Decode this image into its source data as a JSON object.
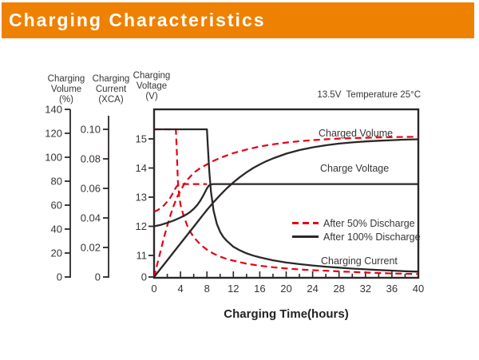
{
  "header": {
    "title": "Charging Characteristics"
  },
  "colors": {
    "accent_orange": "#ee8102",
    "series_red": "#e60012",
    "series_black": "#2b2728",
    "text": "#383434"
  },
  "chart_data": {
    "type": "line",
    "title": "Charging Characteristics",
    "xlabel": "Charging Time(hours)",
    "annotation": "13.5V  Temperature 25°C",
    "grid": false,
    "legend_position": "inside-right",
    "x_axis": {
      "min": 0,
      "max": 40,
      "major_tick_step": 4,
      "minor_tick_step": 2,
      "tick_labels": [
        "0",
        "4",
        "8",
        "12",
        "16",
        "20",
        "24",
        "28",
        "32",
        "36",
        "40"
      ]
    },
    "axes": {
      "volume": {
        "title": "Charging\nVolume\n(%)",
        "min": 0,
        "max": 140,
        "ticks": [
          {
            "v": 0,
            "label": "0"
          },
          {
            "v": 20,
            "label": "20"
          },
          {
            "v": 40,
            "label": "40"
          },
          {
            "v": 60,
            "label": "60"
          },
          {
            "v": 80,
            "label": "80"
          },
          {
            "v": 100,
            "label": "100"
          },
          {
            "v": 120,
            "label": "120"
          },
          {
            "v": 140,
            "label": "140"
          }
        ]
      },
      "current": {
        "title": "Charging\nCurrent\n(XCA)",
        "min": 0,
        "max": 0.1,
        "ticks": [
          {
            "v": 0,
            "label": "0"
          },
          {
            "v": 0.02,
            "label": "0.02"
          },
          {
            "v": 0.04,
            "label": "0.04"
          },
          {
            "v": 0.06,
            "label": "0.06"
          },
          {
            "v": 0.08,
            "label": "0.08"
          },
          {
            "v": 0.1,
            "label": "0.10"
          }
        ]
      },
      "voltage": {
        "title": "Charging\nVoltage\n(V)",
        "min": 0,
        "max": 15.5,
        "broken_axis": true,
        "ticks": [
          {
            "v": 0,
            "label": "0"
          },
          {
            "v": 11,
            "label": "11"
          },
          {
            "v": 12,
            "label": "12"
          },
          {
            "v": 13,
            "label": "13"
          },
          {
            "v": 14,
            "label": "14"
          },
          {
            "v": 15,
            "label": "15"
          }
        ]
      }
    },
    "curve_labels": {
      "charged_volume": "Charged Volume",
      "charge_voltage": "Charge Voltage",
      "charging_current": "Charging Current"
    },
    "legend": [
      {
        "label": "After 50% Discharge",
        "line_style": "dashed",
        "color": "#e60012"
      },
      {
        "label": "After 100% Discharge",
        "line_style": "solid",
        "color": "#2b2728"
      }
    ],
    "series": [
      {
        "id": "charged-volume-50",
        "name": "Charged Volume (After 50% Discharge)",
        "axis": "volume",
        "color": "#e60012",
        "dash": true,
        "points": [
          [
            0,
            0
          ],
          [
            0.5,
            11
          ],
          [
            1,
            22
          ],
          [
            1.5,
            33
          ],
          [
            2,
            43
          ],
          [
            2.5,
            52
          ],
          [
            3,
            60
          ],
          [
            3.5,
            67
          ],
          [
            4,
            72
          ],
          [
            4.5,
            77
          ],
          [
            5,
            81
          ],
          [
            6,
            87
          ],
          [
            7,
            91
          ],
          [
            8,
            94
          ],
          [
            9,
            97
          ],
          [
            10,
            99.5
          ],
          [
            12,
            103.5
          ],
          [
            14,
            106.5
          ],
          [
            16,
            109
          ],
          [
            18,
            110.8
          ],
          [
            20,
            112.3
          ],
          [
            22,
            113.4
          ],
          [
            24,
            114.3
          ],
          [
            26,
            115
          ],
          [
            28,
            115.6
          ],
          [
            30,
            116
          ],
          [
            32,
            116.3
          ],
          [
            34,
            116.6
          ],
          [
            36,
            116.8
          ],
          [
            38,
            117
          ],
          [
            40,
            117.1
          ]
        ]
      },
      {
        "id": "charge-voltage-50",
        "name": "Charge Voltage (After 50% Discharge)",
        "axis": "voltage",
        "color": "#e60012",
        "dash": true,
        "points": [
          [
            0,
            12.5
          ],
          [
            0.5,
            12.55
          ],
          [
            1,
            12.62
          ],
          [
            1.5,
            12.72
          ],
          [
            2,
            12.85
          ],
          [
            2.5,
            13.0
          ],
          [
            3,
            13.2
          ],
          [
            3.3,
            13.33
          ],
          [
            3.6,
            13.42
          ],
          [
            4,
            13.45
          ],
          [
            5,
            13.45
          ],
          [
            6,
            13.45
          ],
          [
            7,
            13.45
          ],
          [
            8,
            13.45
          ]
        ]
      },
      {
        "id": "charging-current-50",
        "name": "Charging Current (After 50% Discharge)",
        "axis": "current",
        "color": "#e60012",
        "dash": true,
        "points": [
          [
            0,
            0.1
          ],
          [
            3.3,
            0.1
          ],
          [
            3.45,
            0.085
          ],
          [
            3.6,
            0.065
          ],
          [
            3.8,
            0.055
          ],
          [
            4,
            0.049
          ],
          [
            4.5,
            0.041
          ],
          [
            5,
            0.035
          ],
          [
            5.5,
            0.0305
          ],
          [
            6,
            0.027
          ],
          [
            6.5,
            0.0245
          ],
          [
            7,
            0.022
          ],
          [
            8,
            0.0185
          ],
          [
            9,
            0.0158
          ],
          [
            10,
            0.0138
          ],
          [
            11,
            0.0122
          ],
          [
            12,
            0.011
          ],
          [
            14,
            0.009
          ],
          [
            16,
            0.0076
          ],
          [
            18,
            0.0066
          ],
          [
            20,
            0.0058
          ],
          [
            22,
            0.0051
          ],
          [
            24,
            0.0046
          ],
          [
            26,
            0.0042
          ],
          [
            28,
            0.0038
          ],
          [
            30,
            0.0034
          ],
          [
            32,
            0.003
          ],
          [
            34,
            0.0027
          ],
          [
            36,
            0.0024
          ],
          [
            38,
            0.0022
          ],
          [
            40,
            0.002
          ]
        ]
      },
      {
        "id": "charged-volume-100",
        "name": "Charged Volume (After 100% Discharge)",
        "axis": "volume",
        "color": "#2b2728",
        "dash": false,
        "points": [
          [
            0,
            0
          ],
          [
            1,
            7
          ],
          [
            2,
            14
          ],
          [
            3,
            21
          ],
          [
            4,
            28
          ],
          [
            5,
            35
          ],
          [
            6,
            42
          ],
          [
            7,
            49
          ],
          [
            8,
            56
          ],
          [
            9,
            62.5
          ],
          [
            10,
            68.5
          ],
          [
            11,
            74
          ],
          [
            12,
            79
          ],
          [
            13,
            83.5
          ],
          [
            14,
            87.5
          ],
          [
            15,
            91
          ],
          [
            16,
            94
          ],
          [
            17,
            96.7
          ],
          [
            18,
            99
          ],
          [
            19,
            101
          ],
          [
            20,
            103
          ],
          [
            22,
            106
          ],
          [
            24,
            108.3
          ],
          [
            26,
            110
          ],
          [
            28,
            111.4
          ],
          [
            30,
            112.4
          ],
          [
            32,
            113.2
          ],
          [
            34,
            113.8
          ],
          [
            36,
            114.3
          ],
          [
            38,
            114.7
          ],
          [
            40,
            115
          ]
        ]
      },
      {
        "id": "charge-voltage-100",
        "name": "Charge Voltage (After 100% Discharge)",
        "axis": "voltage",
        "color": "#2b2728",
        "dash": false,
        "points": [
          [
            0,
            12.0
          ],
          [
            1,
            12.05
          ],
          [
            2,
            12.12
          ],
          [
            3,
            12.2
          ],
          [
            4,
            12.3
          ],
          [
            5,
            12.42
          ],
          [
            5.5,
            12.5
          ],
          [
            6,
            12.6
          ],
          [
            6.5,
            12.72
          ],
          [
            7,
            12.88
          ],
          [
            7.5,
            13.08
          ],
          [
            8,
            13.3
          ],
          [
            8.3,
            13.4
          ],
          [
            8.7,
            13.44
          ],
          [
            9,
            13.45
          ],
          [
            12,
            13.45
          ],
          [
            16,
            13.45
          ],
          [
            20,
            13.45
          ],
          [
            24,
            13.45
          ],
          [
            28,
            13.45
          ],
          [
            32,
            13.45
          ],
          [
            36,
            13.45
          ],
          [
            40,
            13.45
          ]
        ]
      },
      {
        "id": "charging-current-100",
        "name": "Charging Current (After 100% Discharge)",
        "axis": "current",
        "color": "#2b2728",
        "dash": false,
        "points": [
          [
            0,
            0.1
          ],
          [
            8,
            0.1
          ],
          [
            8.15,
            0.088
          ],
          [
            8.35,
            0.072
          ],
          [
            8.6,
            0.058
          ],
          [
            9,
            0.045
          ],
          [
            9.5,
            0.036
          ],
          [
            10,
            0.0305
          ],
          [
            10.5,
            0.027
          ],
          [
            11,
            0.0245
          ],
          [
            12,
            0.0205
          ],
          [
            13,
            0.018
          ],
          [
            14,
            0.016
          ],
          [
            15,
            0.0145
          ],
          [
            16,
            0.0133
          ],
          [
            18,
            0.0113
          ],
          [
            20,
            0.0098
          ],
          [
            22,
            0.0087
          ],
          [
            24,
            0.0078
          ],
          [
            26,
            0.007
          ],
          [
            28,
            0.0063
          ],
          [
            30,
            0.0057
          ],
          [
            32,
            0.0052
          ],
          [
            34,
            0.0047
          ],
          [
            36,
            0.0043
          ],
          [
            38,
            0.0039
          ],
          [
            40,
            0.0036
          ]
        ]
      }
    ]
  }
}
